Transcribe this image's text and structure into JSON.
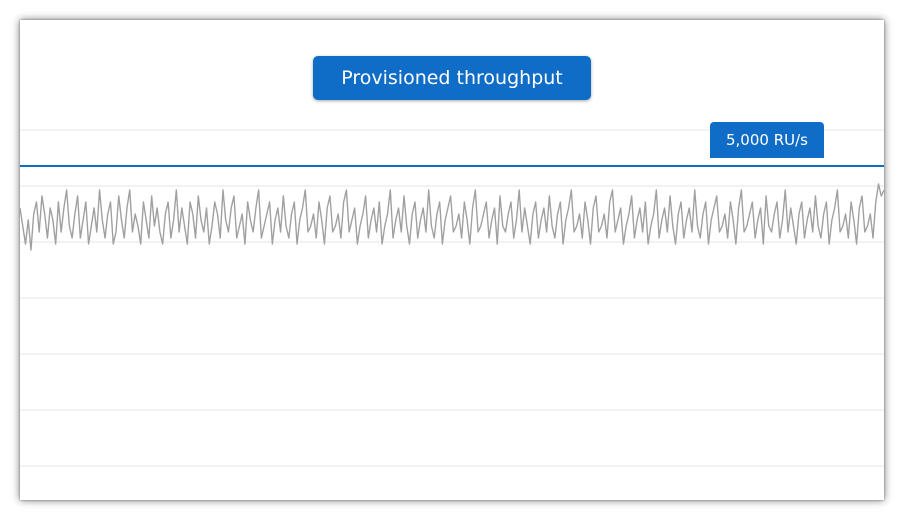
{
  "chart_data": {
    "type": "line",
    "title": "Provisioned throughput",
    "xlabel": "",
    "ylabel": "",
    "threshold": {
      "label": "5,000 RU/s",
      "value": 5000,
      "color": "#0f6cc7"
    },
    "ylim": [
      0,
      5600
    ],
    "grid": true,
    "series": [
      {
        "color": "#a0a0a0",
        "values": [
          4300,
          4000,
          3700,
          4100,
          3600,
          4200,
          4400,
          3900,
          4500,
          4200,
          3800,
          4300,
          4100,
          3700,
          4400,
          3900,
          4300,
          4600,
          4000,
          3800,
          4200,
          4500,
          3800,
          4100,
          4400,
          3700,
          4000,
          4300,
          3900,
          4600,
          4100,
          3800,
          4200,
          4400,
          3700,
          3900,
          4500,
          4100,
          3800,
          4300,
          4600,
          3900,
          4200,
          4000,
          3700,
          4400,
          4100,
          3800,
          4500,
          4000,
          4300,
          3900,
          3700,
          4200,
          4400,
          3800,
          4100,
          4600,
          3900,
          4300,
          4000,
          3700,
          4400,
          4200,
          3800,
          4500,
          4100,
          3900,
          4300,
          3700,
          4000,
          4400,
          4200,
          3800,
          4600,
          4100,
          3900,
          4300,
          4500,
          3800,
          4000,
          4200,
          3700,
          4400,
          4100,
          3900,
          4300,
          4600,
          3800,
          4000,
          4200,
          4400,
          3700,
          4100,
          4300,
          3900,
          4500,
          4000,
          3800,
          4200,
          4400,
          3700,
          4100,
          4300,
          4600,
          3900,
          4000,
          4200,
          3800,
          4400,
          4100,
          3700,
          4300,
          4500,
          3900,
          4000,
          4200,
          3800,
          4400,
          4600,
          3900,
          4100,
          4300,
          3700,
          4000,
          4200,
          4500,
          3800,
          4100,
          4300,
          3900,
          4400,
          3700,
          4000,
          4200,
          4600,
          3800,
          4100,
          4300,
          3900,
          4500,
          4000,
          3700,
          4200,
          4400,
          3800,
          4100,
          4300,
          3900,
          4600,
          4000,
          3800,
          4200,
          4400,
          3700,
          4100,
          4300,
          4500,
          3900,
          4000,
          4200,
          3800,
          4400,
          4100,
          3700,
          4300,
          4600,
          3900,
          4000,
          4200,
          4400,
          3800,
          4100,
          4300,
          3700,
          4500,
          4000,
          3900,
          4200,
          4400,
          3800,
          4100,
          4600,
          3900,
          4300,
          4000,
          3700,
          4200,
          4400,
          3800,
          4100,
          4300,
          3900,
          4500,
          4000,
          3800,
          4200,
          4400,
          3700,
          4100,
          4300,
          4600,
          3900,
          4000,
          4200,
          3800,
          4400,
          4100,
          3700,
          4300,
          4500,
          3900,
          4000,
          4200,
          3800,
          4400,
          4600,
          3900,
          4100,
          4300,
          3700,
          4000,
          4200,
          4500,
          3800,
          4100,
          4300,
          3900,
          4400,
          3700,
          4000,
          4200,
          4600,
          3800,
          4100,
          4300,
          3900,
          4500,
          4000,
          3700,
          4200,
          4400,
          3800,
          4100,
          4300,
          3900,
          4600,
          4000,
          3800,
          4200,
          4400,
          3700,
          4100,
          4300,
          4500,
          3900,
          4000,
          4200,
          3800,
          4400,
          4100,
          3700,
          4300,
          4600,
          3900,
          4000,
          4200,
          4400,
          3800,
          4100,
          4300,
          3700,
          4500,
          4000,
          3900,
          4200,
          4400,
          3800,
          4100,
          4600,
          3900,
          4300,
          4000,
          3700,
          4200,
          4400,
          3800,
          4100,
          4300,
          3900,
          4500,
          4000,
          3800,
          4200,
          4400,
          3700,
          4100,
          4300,
          4600,
          3900,
          4000,
          4200,
          3800,
          4400,
          4100,
          3700,
          4300,
          4500,
          3900,
          4000,
          4200,
          3800,
          4400,
          4700,
          4500,
          4600
        ]
      }
    ]
  }
}
